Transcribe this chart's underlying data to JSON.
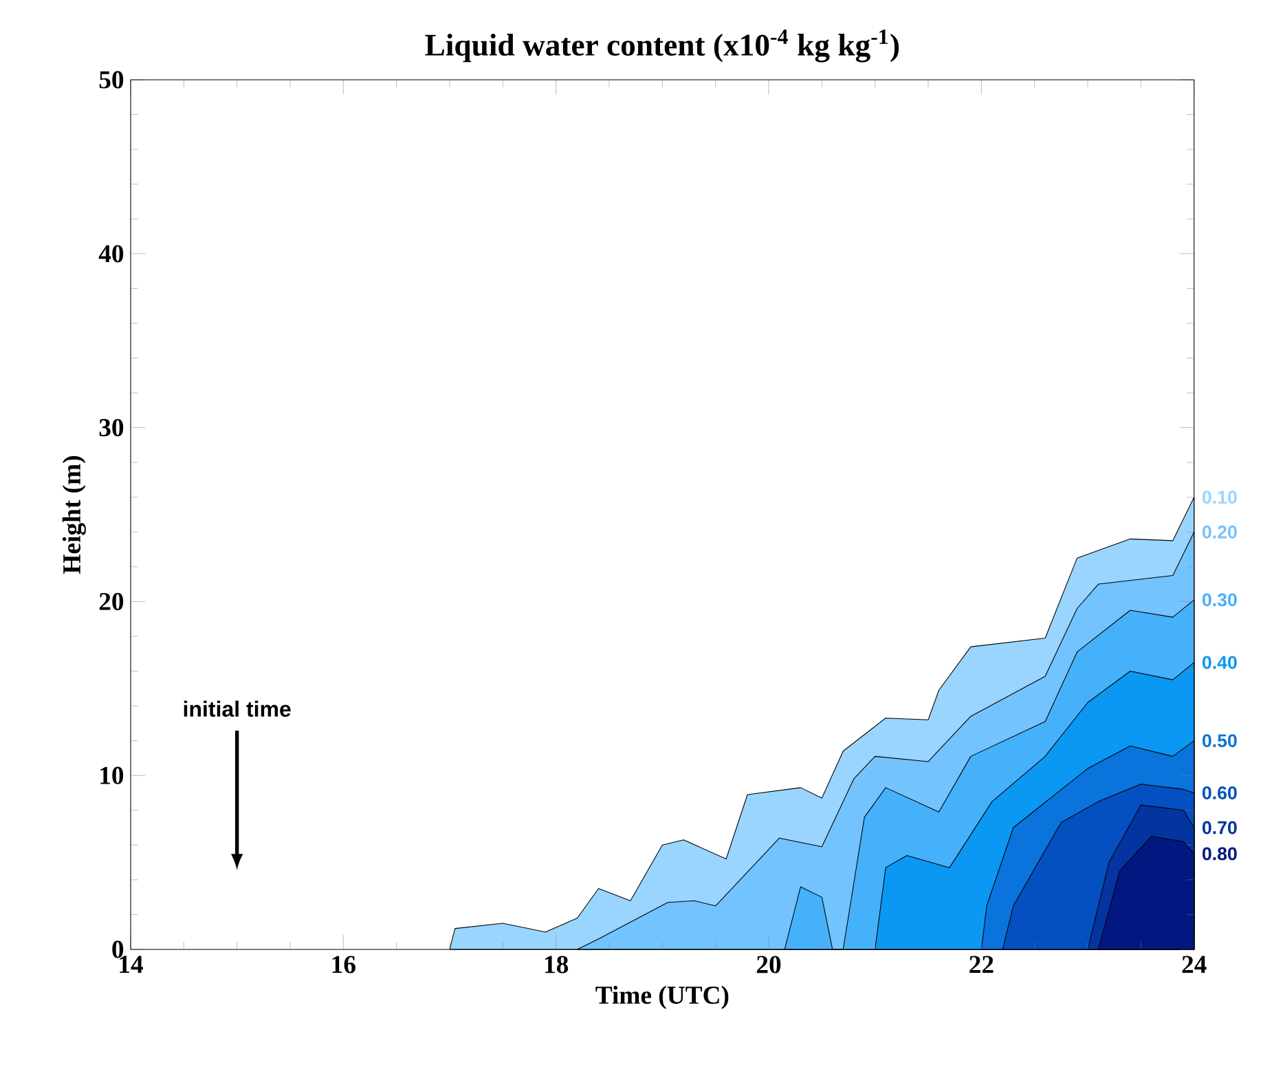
{
  "chart_data": {
    "type": "area",
    "title": "Liquid water content (x10$^{-4}$ kg kg$^{-1}$)",
    "xlabel": "Time (UTC)",
    "ylabel": "Height (m)",
    "xlim": [
      14,
      24
    ],
    "xticks": [
      14,
      16,
      18,
      20,
      22,
      24
    ],
    "ylim": [
      0,
      50
    ],
    "yticks": [
      0,
      10,
      20,
      30,
      40,
      50
    ],
    "series": [
      {
        "name": "0.10",
        "color": "#9ad5ff",
        "x": [
          17.0,
          17.05,
          17.5,
          17.9,
          18.2,
          18.4,
          18.7,
          19.0,
          19.2,
          19.6,
          19.8,
          20.3,
          20.5,
          20.7,
          21.1,
          21.5,
          21.6,
          21.9,
          22.6,
          22.9,
          23.4,
          23.8,
          24.0
        ],
        "values": [
          0,
          1.2,
          1.5,
          1.0,
          1.8,
          3.5,
          2.8,
          6.0,
          6.3,
          5.2,
          8.9,
          9.3,
          8.7,
          11.4,
          13.3,
          13.2,
          14.9,
          17.4,
          17.9,
          22.5,
          23.6,
          23.5,
          26
        ]
      },
      {
        "name": "0.20",
        "color": "#73c3ff",
        "x": [
          18.2,
          18.4,
          19.05,
          19.3,
          19.5,
          19.9,
          20.1,
          20.5,
          20.8,
          21.0,
          21.5,
          21.9,
          22.6,
          22.9,
          23.1,
          23.8,
          24.0
        ],
        "values": [
          0,
          0.6,
          2.7,
          2.8,
          2.5,
          5.1,
          6.4,
          5.9,
          9.8,
          11.1,
          10.8,
          13.4,
          15.7,
          19.6,
          21.0,
          21.5,
          24
        ]
      },
      {
        "name": "0.30",
        "color": "#46b1fb",
        "x": [
          20.15,
          20.3,
          20.5,
          20.6,
          20.7,
          20.9,
          21.1,
          21.6,
          21.9,
          22.6,
          22.9,
          23.4,
          23.8,
          24.0
        ],
        "values": [
          0,
          3.6,
          3.0,
          0,
          0,
          7.6,
          9.3,
          7.9,
          11.1,
          13.1,
          17.1,
          19.5,
          19.1,
          20.1
        ]
      },
      {
        "name": "0.40",
        "color": "#0a98f2",
        "x": [
          21.0,
          21.1,
          21.3,
          21.7,
          22.1,
          22.6,
          23.0,
          23.4,
          23.8,
          24.0
        ],
        "values": [
          0,
          4.7,
          5.4,
          4.7,
          8.5,
          11.1,
          14.2,
          16.0,
          15.5,
          16.5
        ]
      },
      {
        "name": "0.50",
        "color": "#0a74dc",
        "x": [
          22.0,
          22.05,
          22.3,
          23.0,
          23.4,
          23.8,
          24.0
        ],
        "values": [
          0,
          2.5,
          7.0,
          10.4,
          11.7,
          11.1,
          12
        ]
      },
      {
        "name": "0.60",
        "color": "#0550c0",
        "x": [
          22.2,
          22.3,
          22.75,
          23.1,
          23.5,
          23.9,
          24.0
        ],
        "values": [
          0,
          2.5,
          7.3,
          8.5,
          9.5,
          9.2,
          9
        ]
      },
      {
        "name": "0.70",
        "color": "#0434a0",
        "x": [
          23.0,
          23.2,
          23.5,
          23.9,
          24.0
        ],
        "values": [
          0,
          5.0,
          8.3,
          8.0,
          7
        ]
      },
      {
        "name": "0.80",
        "color": "#021880",
        "x": [
          23.1,
          23.3,
          23.6,
          23.9,
          24.0
        ],
        "values": [
          0,
          4.5,
          6.5,
          6.2,
          5.5
        ]
      }
    ],
    "annotations": [
      "initial time"
    ]
  }
}
